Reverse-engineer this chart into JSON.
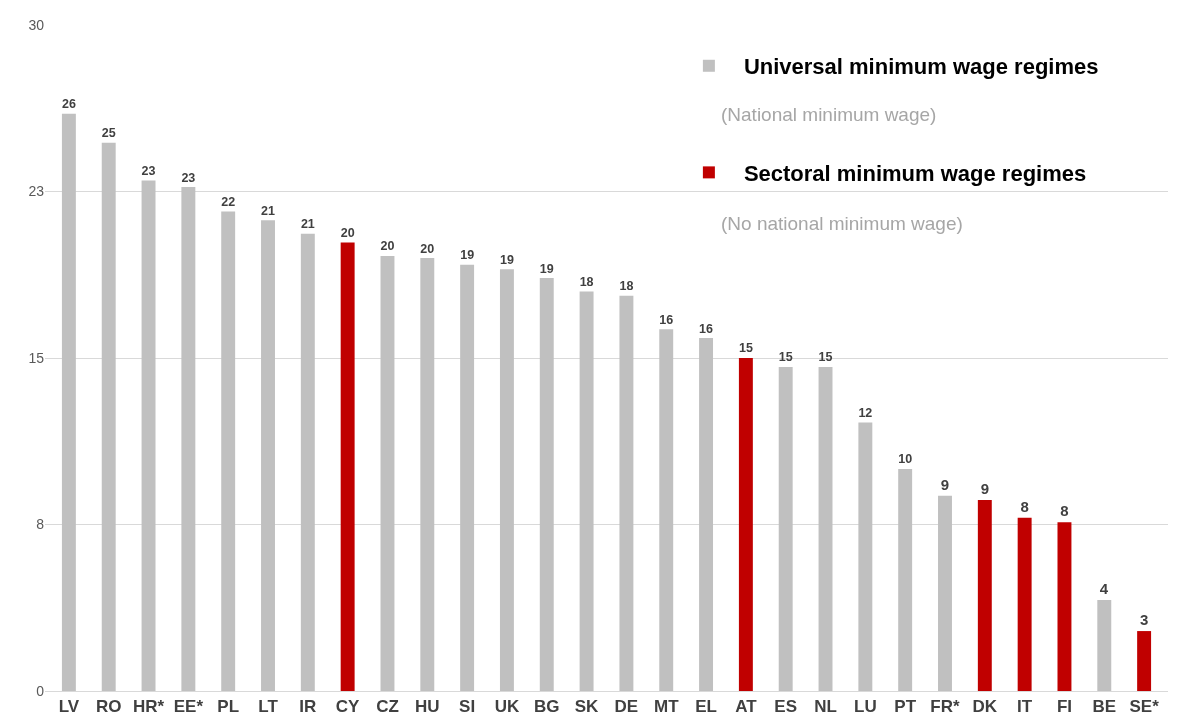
{
  "chart_data": {
    "type": "bar",
    "categories": [
      "LV",
      "RO",
      "HR*",
      "EE*",
      "PL",
      "LT",
      "IR",
      "CY",
      "CZ",
      "HU",
      "SI",
      "UK",
      "BG",
      "SK",
      "DE",
      "MT",
      "EL",
      "AT",
      "ES",
      "NL",
      "LU",
      "PT",
      "FR*",
      "DK",
      "IT",
      "FI",
      "BE",
      "SE*"
    ],
    "series": [
      {
        "name": "Universal minimum wage regimes",
        "color": "#c0c0c0",
        "values": [
          26.0,
          24.7,
          23.0,
          22.7,
          21.6,
          21.2,
          20.6,
          null,
          19.6,
          19.5,
          19.2,
          19.0,
          18.6,
          18.0,
          17.8,
          16.3,
          15.9,
          null,
          14.6,
          14.6,
          12.1,
          10.0,
          8.8,
          null,
          null,
          null,
          4.1,
          null
        ],
        "value_labels": [
          "26",
          "25",
          "23",
          "23",
          "22",
          "21",
          "21",
          null,
          "20",
          "20",
          "19",
          "19",
          "19",
          "18",
          "18",
          "16",
          "16",
          null,
          "15",
          "15",
          "12",
          "10",
          "9",
          null,
          null,
          null,
          "4",
          null
        ]
      },
      {
        "name": "Sectoral minimum wage regimes",
        "color": "#c00000",
        "values": [
          null,
          null,
          null,
          null,
          null,
          null,
          null,
          20.2,
          null,
          null,
          null,
          null,
          null,
          null,
          null,
          null,
          null,
          15.0,
          null,
          null,
          null,
          null,
          null,
          8.6,
          7.8,
          7.6,
          null,
          2.7
        ],
        "value_labels": [
          null,
          null,
          null,
          null,
          null,
          null,
          null,
          "20",
          null,
          null,
          null,
          null,
          null,
          null,
          null,
          null,
          null,
          "15",
          null,
          null,
          null,
          null,
          null,
          "9",
          "8",
          "8",
          null,
          "3"
        ]
      }
    ],
    "annotations": [
      "(National minimum wage)",
      "(No national minimum wage)"
    ],
    "ylim": [
      0,
      30
    ],
    "yticks": [
      0,
      {
        "value": 7.5,
        "label": "8"
      },
      15,
      {
        "value": 22.5,
        "label": "23"
      },
      30
    ],
    "grid": "y",
    "legend": "top right"
  }
}
